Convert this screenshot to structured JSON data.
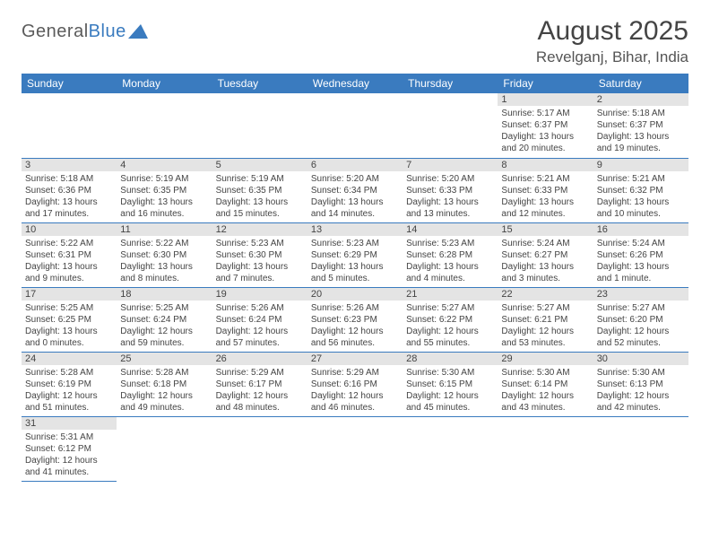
{
  "logo": {
    "part1": "General",
    "part2": "Blue"
  },
  "title": "August 2025",
  "location": "Revelganj, Bihar, India",
  "colors": {
    "header_bg": "#3a7bbf",
    "header_fg": "#ffffff",
    "daynum_bg": "#e4e4e4",
    "row_border": "#3a7bbf",
    "logo_gray": "#5b5b5b",
    "logo_blue": "#3a7bbf"
  },
  "weekdays": [
    "Sunday",
    "Monday",
    "Tuesday",
    "Wednesday",
    "Thursday",
    "Friday",
    "Saturday"
  ],
  "weeks": [
    [
      null,
      null,
      null,
      null,
      null,
      {
        "n": "1",
        "sr": "5:17 AM",
        "ss": "6:37 PM",
        "dl": "13 hours and 20 minutes."
      },
      {
        "n": "2",
        "sr": "5:18 AM",
        "ss": "6:37 PM",
        "dl": "13 hours and 19 minutes."
      }
    ],
    [
      {
        "n": "3",
        "sr": "5:18 AM",
        "ss": "6:36 PM",
        "dl": "13 hours and 17 minutes."
      },
      {
        "n": "4",
        "sr": "5:19 AM",
        "ss": "6:35 PM",
        "dl": "13 hours and 16 minutes."
      },
      {
        "n": "5",
        "sr": "5:19 AM",
        "ss": "6:35 PM",
        "dl": "13 hours and 15 minutes."
      },
      {
        "n": "6",
        "sr": "5:20 AM",
        "ss": "6:34 PM",
        "dl": "13 hours and 14 minutes."
      },
      {
        "n": "7",
        "sr": "5:20 AM",
        "ss": "6:33 PM",
        "dl": "13 hours and 13 minutes."
      },
      {
        "n": "8",
        "sr": "5:21 AM",
        "ss": "6:33 PM",
        "dl": "13 hours and 12 minutes."
      },
      {
        "n": "9",
        "sr": "5:21 AM",
        "ss": "6:32 PM",
        "dl": "13 hours and 10 minutes."
      }
    ],
    [
      {
        "n": "10",
        "sr": "5:22 AM",
        "ss": "6:31 PM",
        "dl": "13 hours and 9 minutes."
      },
      {
        "n": "11",
        "sr": "5:22 AM",
        "ss": "6:30 PM",
        "dl": "13 hours and 8 minutes."
      },
      {
        "n": "12",
        "sr": "5:23 AM",
        "ss": "6:30 PM",
        "dl": "13 hours and 7 minutes."
      },
      {
        "n": "13",
        "sr": "5:23 AM",
        "ss": "6:29 PM",
        "dl": "13 hours and 5 minutes."
      },
      {
        "n": "14",
        "sr": "5:23 AM",
        "ss": "6:28 PM",
        "dl": "13 hours and 4 minutes."
      },
      {
        "n": "15",
        "sr": "5:24 AM",
        "ss": "6:27 PM",
        "dl": "13 hours and 3 minutes."
      },
      {
        "n": "16",
        "sr": "5:24 AM",
        "ss": "6:26 PM",
        "dl": "13 hours and 1 minute."
      }
    ],
    [
      {
        "n": "17",
        "sr": "5:25 AM",
        "ss": "6:25 PM",
        "dl": "13 hours and 0 minutes."
      },
      {
        "n": "18",
        "sr": "5:25 AM",
        "ss": "6:24 PM",
        "dl": "12 hours and 59 minutes."
      },
      {
        "n": "19",
        "sr": "5:26 AM",
        "ss": "6:24 PM",
        "dl": "12 hours and 57 minutes."
      },
      {
        "n": "20",
        "sr": "5:26 AM",
        "ss": "6:23 PM",
        "dl": "12 hours and 56 minutes."
      },
      {
        "n": "21",
        "sr": "5:27 AM",
        "ss": "6:22 PM",
        "dl": "12 hours and 55 minutes."
      },
      {
        "n": "22",
        "sr": "5:27 AM",
        "ss": "6:21 PM",
        "dl": "12 hours and 53 minutes."
      },
      {
        "n": "23",
        "sr": "5:27 AM",
        "ss": "6:20 PM",
        "dl": "12 hours and 52 minutes."
      }
    ],
    [
      {
        "n": "24",
        "sr": "5:28 AM",
        "ss": "6:19 PM",
        "dl": "12 hours and 51 minutes."
      },
      {
        "n": "25",
        "sr": "5:28 AM",
        "ss": "6:18 PM",
        "dl": "12 hours and 49 minutes."
      },
      {
        "n": "26",
        "sr": "5:29 AM",
        "ss": "6:17 PM",
        "dl": "12 hours and 48 minutes."
      },
      {
        "n": "27",
        "sr": "5:29 AM",
        "ss": "6:16 PM",
        "dl": "12 hours and 46 minutes."
      },
      {
        "n": "28",
        "sr": "5:30 AM",
        "ss": "6:15 PM",
        "dl": "12 hours and 45 minutes."
      },
      {
        "n": "29",
        "sr": "5:30 AM",
        "ss": "6:14 PM",
        "dl": "12 hours and 43 minutes."
      },
      {
        "n": "30",
        "sr": "5:30 AM",
        "ss": "6:13 PM",
        "dl": "12 hours and 42 minutes."
      }
    ],
    [
      {
        "n": "31",
        "sr": "5:31 AM",
        "ss": "6:12 PM",
        "dl": "12 hours and 41 minutes."
      },
      null,
      null,
      null,
      null,
      null,
      null
    ]
  ],
  "labels": {
    "sunrise": "Sunrise: ",
    "sunset": "Sunset: ",
    "daylight": "Daylight: "
  }
}
